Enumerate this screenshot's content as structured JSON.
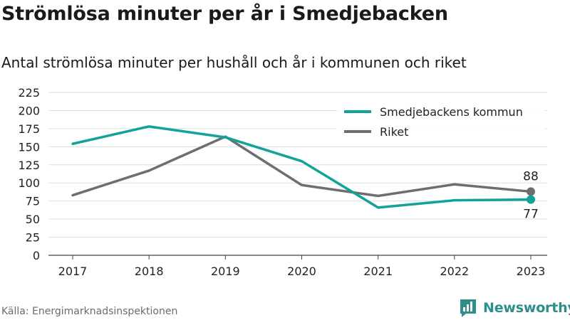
{
  "title": "Strömlösa minuter per år i Smedjebacken",
  "subtitle": "Antal strömlösa minuter per hushåll och år i kommunen och riket",
  "source": "Källa: Energimarknadsinspektionen",
  "brand": {
    "name": "Newsworthy",
    "color": "#2e8f8a",
    "icon": "bar-chart-speech-bubble-icon"
  },
  "chart_data": {
    "type": "line",
    "x": [
      "2017",
      "2018",
      "2019",
      "2020",
      "2021",
      "2022",
      "2023"
    ],
    "ylim": [
      0,
      225
    ],
    "yticks": [
      0,
      25,
      50,
      75,
      100,
      125,
      150,
      175,
      200,
      225
    ],
    "grid": true,
    "legend_position": "top-right",
    "series": [
      {
        "name": "Smedjebackens kommun",
        "color": "#11a39a",
        "values": [
          154,
          178,
          163,
          130,
          66,
          76,
          77
        ],
        "end_label": "77"
      },
      {
        "name": "Riket",
        "color": "#6e6e72",
        "values": [
          83,
          117,
          164,
          97,
          82,
          98,
          88
        ],
        "end_label": "88"
      }
    ]
  }
}
